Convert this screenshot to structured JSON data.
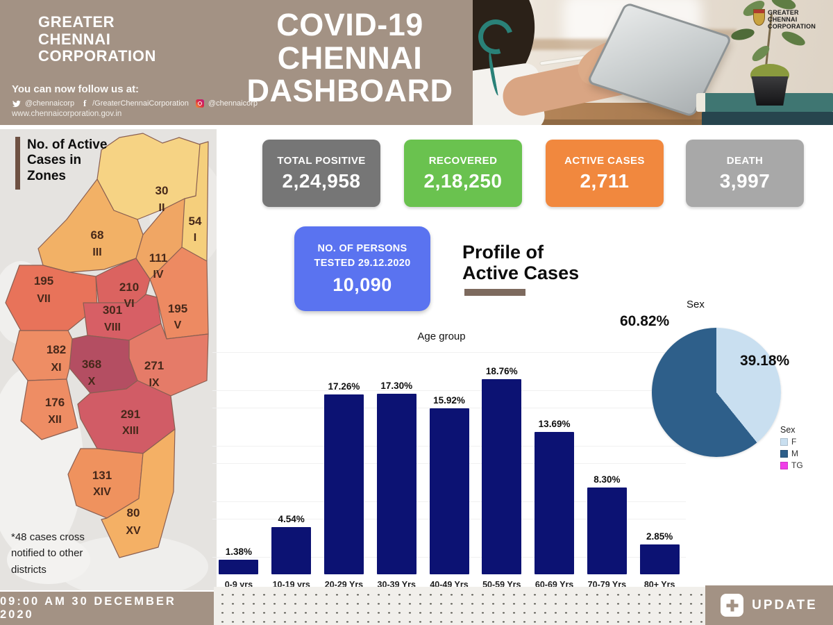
{
  "header": {
    "org_name": "GREATER\nCHENNAI\nCORPORATION",
    "follow_text": "You can now follow us at:",
    "social": {
      "twitter_handle": "@chennaicorp",
      "facebook_handle": "/GreaterChennaiCorporation",
      "instagram_handle": "@chennaicorp",
      "website": "www.chennaicorporation.gov.in"
    },
    "title": "COVID-19\nCHENNAI\nDASHBOARD",
    "photo_logo_text": "GREATER\nCHENNAI\nCORPORATION"
  },
  "stats": [
    {
      "label": "TOTAL POSITIVE",
      "value": "2,24,958",
      "color": "#767676"
    },
    {
      "label": "RECOVERED",
      "value": "2,18,250",
      "color": "#6ac24f"
    },
    {
      "label": "ACTIVE CASES",
      "value": "2,711",
      "color": "#f1883e"
    },
    {
      "label": "DEATH",
      "value": "3,997",
      "color": "#a8a8a8"
    }
  ],
  "tested": {
    "label": "NO. OF PERSONS\nTESTED 29.12.2020",
    "value": "10,090",
    "color": "#5a73f0"
  },
  "profile_heading": "Profile of\nActive Cases",
  "map": {
    "title": "No. of Active\nCases in\nZones",
    "footnote": "*48 cases cross\nnotified to other\ndistricts",
    "zones": [
      {
        "id": "I",
        "cases": "54",
        "color": "#f5cf7c"
      },
      {
        "id": "II",
        "cases": "30",
        "color": "#f6d384"
      },
      {
        "id": "III",
        "cases": "68",
        "color": "#f2b166"
      },
      {
        "id": "IV",
        "cases": "111",
        "color": "#f0a664"
      },
      {
        "id": "V",
        "cases": "195",
        "color": "#ed8a62"
      },
      {
        "id": "VI",
        "cases": "210",
        "color": "#db6360"
      },
      {
        "id": "VII",
        "cases": "195",
        "color": "#e8735a"
      },
      {
        "id": "VIII",
        "cases": "301",
        "color": "#d75f65"
      },
      {
        "id": "IX",
        "cases": "271",
        "color": "#e57b68"
      },
      {
        "id": "X",
        "cases": "368",
        "color": "#b44e62"
      },
      {
        "id": "XI",
        "cases": "182",
        "color": "#ee8d64"
      },
      {
        "id": "XII",
        "cases": "176",
        "color": "#ee8d64"
      },
      {
        "id": "XIII",
        "cases": "291",
        "color": "#d15c66"
      },
      {
        "id": "XIV",
        "cases": "131",
        "color": "#ef925e"
      },
      {
        "id": "XV",
        "cases": "80",
        "color": "#f4b065"
      }
    ]
  },
  "chart_data": [
    {
      "type": "bar",
      "title": "Age group",
      "categories": [
        "0-9 yrs",
        "10-19 yrs",
        "20-29 Yrs",
        "30-39 Yrs",
        "40-49 Yrs",
        "50-59 Yrs",
        "60-69 Yrs",
        "70-79 Yrs",
        "80+ Yrs"
      ],
      "values": [
        1.38,
        4.54,
        17.26,
        17.3,
        15.92,
        18.76,
        13.69,
        8.3,
        2.85
      ],
      "labels": [
        "1.38%",
        "4.54%",
        "17.26%",
        "17.30%",
        "15.92%",
        "18.76%",
        "13.69%",
        "8.30%",
        "2.85%"
      ],
      "bar_color": "#0c1273",
      "xlabel": "",
      "ylabel": "",
      "ylim": [
        0,
        20
      ],
      "grid": true,
      "value_labels_position": "above"
    },
    {
      "type": "pie",
      "title": "Sex",
      "legend_title": "Sex",
      "legend_position": "bottom-right",
      "start_angle_deg": 0,
      "direction": "clockwise",
      "slices": [
        {
          "name": "F",
          "value": 39.18,
          "label": "39.18%",
          "color": "#c9dff0"
        },
        {
          "name": "M",
          "value": 60.82,
          "label": "60.82%",
          "color": "#2e5f8a"
        },
        {
          "name": "TG",
          "value": 0,
          "label": "",
          "color": "#f03ee8"
        }
      ]
    }
  ],
  "footer": {
    "timestamp": "09:00 AM 30 DECEMBER 2020",
    "update_label": "UPDATE"
  }
}
